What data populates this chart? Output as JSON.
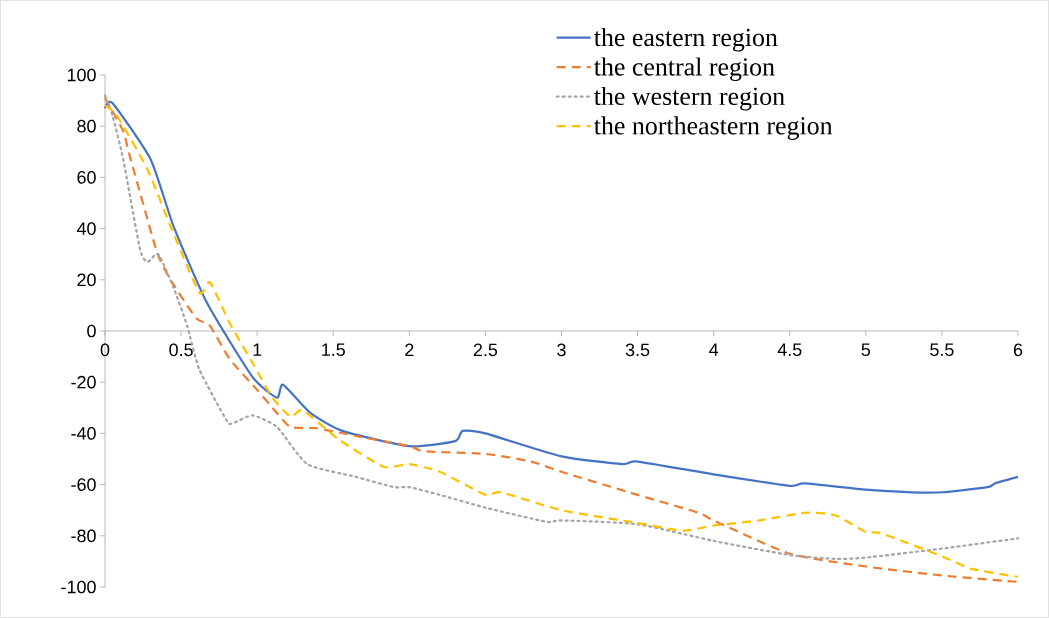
{
  "chart_data": {
    "type": "line",
    "xlim": [
      0,
      6
    ],
    "ylim": [
      -100,
      100
    ],
    "xticks": [
      0,
      0.5,
      1,
      1.5,
      2,
      2.5,
      3,
      3.5,
      4,
      4.5,
      5,
      5.5,
      6
    ],
    "yticks": [
      -100,
      -80,
      -60,
      -40,
      -20,
      0,
      20,
      40,
      60,
      80,
      100
    ],
    "grid": false,
    "legend": "top right",
    "series": [
      {
        "name": "the eastern region",
        "color": "#4472c4",
        "line_style": "solid",
        "x": [
          0,
          0.05,
          0.3,
          0.45,
          0.67,
          0.97,
          1.13,
          1.17,
          1.35,
          1.56,
          2,
          2.3,
          2.35,
          2.5,
          3,
          3.4,
          3.5,
          4,
          4.5,
          4.6,
          5,
          5.3,
          5.5,
          5.8,
          5.85,
          6
        ],
        "values": [
          87,
          89,
          67,
          41,
          11,
          -18,
          -26,
          -21,
          -32,
          -39,
          -45,
          -43,
          -39,
          -40,
          -49,
          -52,
          -51,
          -56,
          -60.5,
          -59.5,
          -62,
          -63,
          -63,
          -61,
          -59.5,
          -57
        ]
      },
      {
        "name": "the central region",
        "color": "#ed7d31",
        "line_style": "dashed",
        "x": [
          0,
          0.12,
          0.16,
          0.32,
          0.36,
          0.43,
          0.6,
          0.69,
          0.82,
          1.0,
          1.13,
          1.22,
          1.39,
          1.65,
          2,
          2.1,
          2.5,
          2.8,
          3,
          3.5,
          3.9,
          4,
          4.5,
          5,
          5.5,
          6
        ],
        "values": [
          91,
          78,
          69,
          35,
          28,
          20,
          5,
          2,
          -11,
          -23,
          -32,
          -37.5,
          -38,
          -41,
          -45,
          -47,
          -48,
          -51,
          -55,
          -64,
          -71,
          -74,
          -87,
          -92,
          -95.5,
          -98
        ]
      },
      {
        "name": "the western region",
        "color": "#a5a5a5",
        "line_style": "dotted",
        "x": [
          0,
          0.05,
          0.12,
          0.23,
          0.28,
          0.35,
          0.45,
          0.54,
          0.62,
          0.8,
          0.84,
          0.97,
          1.13,
          1.33,
          1.65,
          1.9,
          2,
          2.2,
          2.5,
          2.9,
          3,
          3.5,
          4,
          4.5,
          4.8,
          5,
          5.5,
          6
        ],
        "values": [
          92,
          84,
          67,
          32,
          27,
          30,
          17,
          2,
          -15,
          -35,
          -36,
          -33,
          -37.5,
          -52,
          -57,
          -61,
          -61,
          -64,
          -69,
          -74.5,
          -74,
          -75.5,
          -82,
          -87.5,
          -89,
          -88.5,
          -85,
          -81
        ]
      },
      {
        "name": "the northeastern region",
        "color": "#ffc000",
        "line_style": "dashed",
        "x": [
          0,
          0.08,
          0.28,
          0.43,
          0.62,
          0.69,
          0.82,
          0.97,
          1.1,
          1.22,
          1.3,
          1.54,
          1.83,
          2,
          2.2,
          2.5,
          2.6,
          3,
          3.5,
          3.8,
          4,
          4.3,
          4.6,
          4.8,
          5,
          5.1,
          5.5,
          5.7,
          6
        ],
        "values": [
          88,
          84,
          63,
          41,
          15,
          19,
          3,
          -12.5,
          -26,
          -33.5,
          -31,
          -42.5,
          -53,
          -52,
          -55,
          -64,
          -63,
          -70,
          -75,
          -78,
          -76,
          -74,
          -71,
          -72,
          -78.5,
          -79,
          -88,
          -93,
          -96
        ]
      }
    ]
  }
}
